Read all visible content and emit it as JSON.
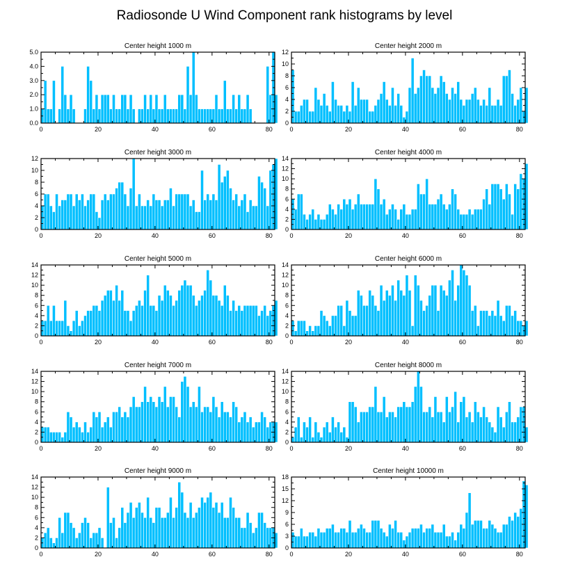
{
  "title": "Radiosonde U Wind Component rank histograms by level",
  "colors": {
    "bar": "#00bfff",
    "bar_edge": "#ffffff",
    "axis": "#000000"
  },
  "chart_data": [
    {
      "type": "bar",
      "title": "Center height 1000 m",
      "xlim": [
        0,
        82
      ],
      "ylim": [
        0,
        5
      ],
      "x_ticks": [
        0,
        20,
        40,
        60,
        80
      ],
      "y_ticks": [
        0,
        1,
        2,
        3,
        4,
        5
      ],
      "y_tick_labels": [
        "0.0",
        "1.0",
        "2.0",
        "3.0",
        "4.0",
        "5.0"
      ],
      "values": [
        1,
        3,
        1,
        1,
        3,
        0,
        1,
        4,
        2,
        1,
        2,
        1,
        0,
        0,
        0,
        1,
        4,
        3,
        1,
        2,
        1,
        2,
        2,
        2,
        1,
        2,
        1,
        1,
        2,
        2,
        1,
        2,
        1,
        0,
        1,
        1,
        2,
        1,
        2,
        1,
        2,
        1,
        1,
        2,
        1,
        1,
        1,
        1,
        2,
        2,
        1,
        4,
        2,
        5,
        2,
        1,
        1,
        1,
        1,
        1,
        1,
        2,
        1,
        1,
        3,
        1,
        1,
        2,
        1,
        2,
        1,
        1,
        2,
        1,
        0,
        0,
        0,
        0,
        0,
        4,
        2,
        5,
        2
      ]
    },
    {
      "type": "bar",
      "title": "Center height 2000 m",
      "xlim": [
        0,
        82
      ],
      "ylim": [
        0,
        12
      ],
      "x_ticks": [
        0,
        20,
        40,
        60,
        80
      ],
      "y_ticks": [
        0,
        2,
        4,
        6,
        8,
        10,
        12
      ],
      "y_tick_labels": [
        "0",
        "2",
        "4",
        "6",
        "8",
        "10",
        "12"
      ],
      "values": [
        9,
        2,
        2,
        3,
        4,
        4,
        2,
        2,
        6,
        4,
        3,
        5,
        3,
        2,
        7,
        4,
        3,
        3,
        2,
        3,
        2,
        7,
        3,
        6,
        4,
        4,
        4,
        2,
        2,
        3,
        4,
        5,
        7,
        4,
        3,
        6,
        3,
        5,
        3,
        1,
        2,
        6,
        11,
        5,
        6,
        8,
        9,
        8,
        8,
        6,
        5,
        6,
        8,
        7,
        5,
        4,
        6,
        5,
        7,
        4,
        3,
        4,
        4,
        5,
        6,
        4,
        3,
        4,
        3,
        6,
        3,
        3,
        4,
        3,
        8,
        8,
        9,
        5,
        3,
        4,
        6,
        2,
        6
      ]
    },
    {
      "type": "bar",
      "title": "Center height 3000 m",
      "xlim": [
        0,
        82
      ],
      "ylim": [
        0,
        12
      ],
      "x_ticks": [
        0,
        20,
        40,
        60,
        80
      ],
      "y_ticks": [
        0,
        2,
        4,
        6,
        8,
        10,
        12
      ],
      "y_tick_labels": [
        "0",
        "2",
        "4",
        "6",
        "8",
        "10",
        "12"
      ],
      "values": [
        4,
        6,
        6,
        4,
        3,
        6,
        4,
        5,
        5,
        6,
        6,
        4,
        6,
        5,
        6,
        4,
        5,
        6,
        6,
        3,
        2,
        5,
        6,
        5,
        6,
        6,
        7,
        8,
        8,
        6,
        4,
        7,
        12,
        4,
        6,
        4,
        4,
        5,
        4,
        6,
        5,
        5,
        4,
        5,
        5,
        7,
        4,
        6,
        6,
        6,
        6,
        6,
        4,
        5,
        3,
        3,
        10,
        5,
        6,
        5,
        6,
        5,
        11,
        8,
        9,
        10,
        7,
        5,
        6,
        4,
        5,
        6,
        3,
        5,
        4,
        4,
        9,
        8,
        7,
        4,
        10,
        11,
        12
      ]
    },
    {
      "type": "bar",
      "title": "Center height 4000 m",
      "xlim": [
        0,
        82
      ],
      "ylim": [
        0,
        14
      ],
      "x_ticks": [
        0,
        20,
        40,
        60,
        80
      ],
      "y_ticks": [
        0,
        2,
        4,
        6,
        8,
        10,
        12,
        14
      ],
      "y_tick_labels": [
        "0",
        "2",
        "4",
        "6",
        "8",
        "10",
        "12",
        "14"
      ],
      "values": [
        6,
        4,
        7,
        7,
        3,
        2,
        3,
        4,
        2,
        3,
        2,
        2,
        3,
        5,
        4,
        3,
        5,
        4,
        6,
        5,
        6,
        4,
        5,
        7,
        5,
        5,
        5,
        5,
        5,
        10,
        8,
        5,
        6,
        3,
        4,
        5,
        4,
        2,
        4,
        5,
        3,
        3,
        4,
        4,
        9,
        7,
        7,
        10,
        5,
        5,
        5,
        6,
        7,
        5,
        4,
        5,
        8,
        7,
        4,
        3,
        3,
        3,
        4,
        3,
        4,
        4,
        4,
        6,
        8,
        5,
        9,
        9,
        9,
        8,
        6,
        9,
        7,
        3,
        9,
        8,
        11,
        10,
        13
      ]
    },
    {
      "type": "bar",
      "title": "Center height 5000 m",
      "xlim": [
        0,
        82
      ],
      "ylim": [
        0,
        14
      ],
      "x_ticks": [
        0,
        20,
        40,
        60,
        80
      ],
      "y_ticks": [
        0,
        2,
        4,
        6,
        8,
        10,
        12,
        14
      ],
      "y_tick_labels": [
        "0",
        "2",
        "4",
        "6",
        "8",
        "10",
        "12",
        "14"
      ],
      "values": [
        3,
        3,
        6,
        3,
        6,
        3,
        3,
        3,
        7,
        2,
        1,
        3,
        5,
        2,
        3,
        4,
        5,
        5,
        6,
        6,
        5,
        7,
        8,
        9,
        9,
        7,
        10,
        7,
        9,
        5,
        5,
        3,
        5,
        6,
        7,
        6,
        9,
        12,
        6,
        6,
        5,
        8,
        7,
        10,
        9,
        8,
        6,
        7,
        9,
        10,
        11,
        10,
        10,
        8,
        6,
        7,
        8,
        9,
        13,
        11,
        8,
        8,
        7,
        6,
        10,
        8,
        5,
        7,
        5,
        6,
        5,
        6,
        6,
        6,
        6,
        6,
        4,
        5,
        6,
        4,
        5,
        6,
        7
      ]
    },
    {
      "type": "bar",
      "title": "Center height 6000 m",
      "xlim": [
        0,
        82
      ],
      "ylim": [
        0,
        14
      ],
      "x_ticks": [
        0,
        20,
        40,
        60,
        80
      ],
      "y_ticks": [
        0,
        2,
        4,
        6,
        8,
        10,
        12,
        14
      ],
      "y_tick_labels": [
        "0",
        "2",
        "4",
        "6",
        "8",
        "10",
        "12",
        "14"
      ],
      "values": [
        3,
        1,
        3,
        3,
        3,
        1,
        2,
        1,
        2,
        2,
        5,
        4,
        3,
        2,
        4,
        4,
        6,
        6,
        2,
        7,
        5,
        4,
        4,
        9,
        8,
        6,
        6,
        9,
        8,
        6,
        5,
        10,
        7,
        9,
        8,
        10,
        7,
        11,
        9,
        8,
        12,
        9,
        2,
        12,
        10,
        7,
        5,
        6,
        8,
        10,
        10,
        5,
        10,
        9,
        8,
        11,
        13,
        7,
        10,
        14,
        13,
        12,
        10,
        5,
        6,
        2,
        5,
        5,
        5,
        4,
        5,
        4,
        7,
        4,
        3,
        6,
        6,
        4,
        5,
        3,
        3,
        2,
        3
      ]
    },
    {
      "type": "bar",
      "title": "Center height 7000 m",
      "xlim": [
        0,
        82
      ],
      "ylim": [
        0,
        14
      ],
      "x_ticks": [
        0,
        20,
        40,
        60,
        80
      ],
      "y_ticks": [
        0,
        2,
        4,
        6,
        8,
        10,
        12,
        14
      ],
      "y_tick_labels": [
        "0",
        "2",
        "4",
        "6",
        "8",
        "10",
        "12",
        "14"
      ],
      "values": [
        3,
        3,
        3,
        2,
        2,
        2,
        2,
        1,
        2,
        6,
        5,
        3,
        4,
        3,
        2,
        4,
        2,
        3,
        6,
        5,
        6,
        3,
        4,
        5,
        3,
        6,
        6,
        7,
        5,
        6,
        5,
        7,
        9,
        7,
        7,
        8,
        11,
        8,
        9,
        8,
        7,
        9,
        8,
        11,
        7,
        9,
        9,
        7,
        5,
        12,
        13,
        11,
        7,
        8,
        7,
        11,
        6,
        7,
        7,
        6,
        9,
        7,
        5,
        8,
        6,
        6,
        5,
        8,
        7,
        4,
        5,
        6,
        4,
        5,
        3,
        4,
        4,
        6,
        5,
        3,
        4,
        4,
        4
      ]
    },
    {
      "type": "bar",
      "title": "Center height 8000 m",
      "xlim": [
        0,
        82
      ],
      "ylim": [
        0,
        14
      ],
      "x_ticks": [
        0,
        20,
        40,
        60,
        80
      ],
      "y_ticks": [
        0,
        2,
        4,
        6,
        8,
        10,
        12,
        14
      ],
      "y_tick_labels": [
        "0",
        "2",
        "4",
        "6",
        "8",
        "10",
        "12",
        "14"
      ],
      "values": [
        1,
        3,
        5,
        1,
        4,
        3,
        5,
        1,
        4,
        2,
        1,
        3,
        4,
        2,
        5,
        3,
        4,
        2,
        3,
        1,
        8,
        8,
        7,
        4,
        6,
        6,
        6,
        7,
        7,
        11,
        6,
        6,
        9,
        5,
        6,
        6,
        5,
        7,
        7,
        8,
        7,
        7,
        8,
        11,
        14,
        11,
        6,
        6,
        7,
        5,
        9,
        6,
        6,
        4,
        9,
        6,
        7,
        10,
        4,
        8,
        9,
        5,
        6,
        4,
        8,
        6,
        5,
        7,
        5,
        4,
        3,
        2,
        7,
        5,
        3,
        6,
        8,
        4,
        4,
        5,
        7,
        7,
        3
      ]
    },
    {
      "type": "bar",
      "title": "Center height 9000 m",
      "xlim": [
        0,
        82
      ],
      "ylim": [
        0,
        14
      ],
      "x_ticks": [
        0,
        20,
        40,
        60,
        80
      ],
      "y_ticks": [
        0,
        2,
        4,
        6,
        8,
        10,
        12,
        14
      ],
      "y_tick_labels": [
        "0",
        "2",
        "4",
        "6",
        "8",
        "10",
        "12",
        "14"
      ],
      "values": [
        2,
        3,
        4,
        2,
        1,
        2,
        6,
        3,
        7,
        7,
        5,
        4,
        2,
        3,
        5,
        6,
        5,
        2,
        3,
        3,
        4,
        2,
        0,
        12,
        5,
        6,
        2,
        4,
        8,
        5,
        7,
        9,
        6,
        8,
        9,
        7,
        6,
        10,
        6,
        5,
        8,
        8,
        6,
        6,
        7,
        10,
        6,
        8,
        13,
        11,
        7,
        6,
        9,
        6,
        7,
        8,
        10,
        9,
        10,
        11,
        8,
        9,
        7,
        9,
        6,
        6,
        10,
        8,
        6,
        6,
        4,
        4,
        7,
        5,
        3,
        4,
        7,
        7,
        5,
        4,
        4,
        4,
        3
      ]
    },
    {
      "type": "bar",
      "title": "Center height 10000 m",
      "xlim": [
        0,
        82
      ],
      "ylim": [
        0,
        18
      ],
      "x_ticks": [
        0,
        20,
        40,
        60,
        80
      ],
      "y_ticks": [
        0,
        3,
        6,
        9,
        12,
        15,
        18
      ],
      "y_tick_labels": [
        "0",
        "3",
        "6",
        "9",
        "12",
        "15",
        "18"
      ],
      "values": [
        4,
        3,
        3,
        5,
        3,
        3,
        4,
        4,
        3,
        5,
        4,
        4,
        5,
        5,
        6,
        4,
        4,
        5,
        5,
        4,
        7,
        4,
        4,
        5,
        6,
        5,
        4,
        4,
        7,
        7,
        7,
        5,
        4,
        3,
        6,
        5,
        7,
        4,
        4,
        2,
        3,
        4,
        5,
        5,
        5,
        6,
        4,
        5,
        5,
        6,
        4,
        4,
        4,
        6,
        3,
        3,
        4,
        2,
        4,
        6,
        5,
        9,
        14,
        6,
        7,
        7,
        7,
        5,
        5,
        7,
        6,
        5,
        4,
        4,
        6,
        6,
        8,
        7,
        9,
        8,
        10,
        17,
        16
      ]
    }
  ]
}
